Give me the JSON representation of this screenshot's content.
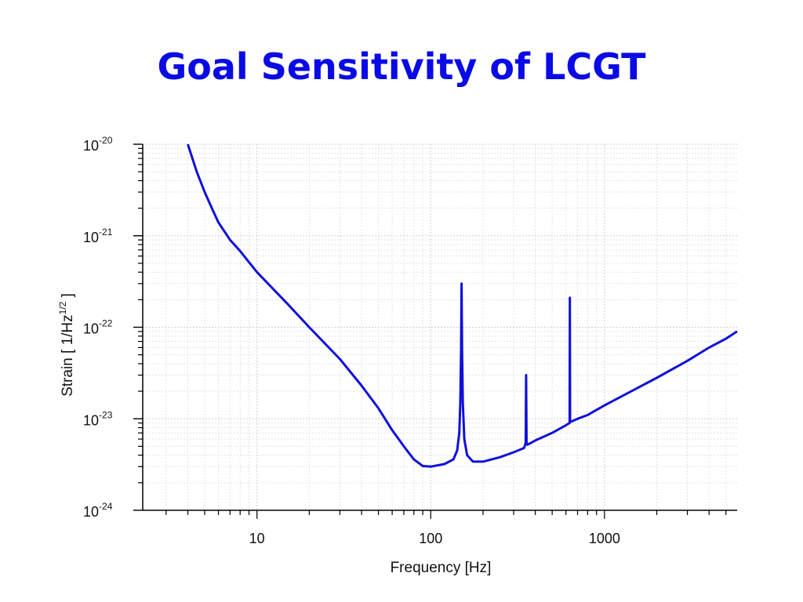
{
  "slide": {
    "title": "Goal Sensitivity of LCGT"
  },
  "chart_data": {
    "type": "line",
    "title": "Goal Sensitivity of LCGT",
    "xlabel": "Frequency [Hz]",
    "ylabel": "Strain [ 1/Hz^1/2 ]",
    "x_scale": "log",
    "y_scale": "log",
    "xlim": [
      2.2,
      5800
    ],
    "ylim": [
      1e-24,
      1e-20
    ],
    "grid": true,
    "x_ticks": [
      {
        "value": 10,
        "label": "10"
      },
      {
        "value": 100,
        "label": "100"
      },
      {
        "value": 1000,
        "label": "1000"
      }
    ],
    "y_ticks": [
      {
        "value": 1e-20,
        "base": "10",
        "exp": "-20"
      },
      {
        "value": 1e-21,
        "base": "10",
        "exp": "-21"
      },
      {
        "value": 1e-22,
        "base": "10",
        "exp": "-22"
      },
      {
        "value": 1e-23,
        "base": "10",
        "exp": "-23"
      },
      {
        "value": 1e-24,
        "base": "10",
        "exp": "-24"
      }
    ],
    "color": "#1010d8",
    "series": [
      {
        "values": [
          [
            4.0,
            1e-20
          ],
          [
            4.5,
            5e-21
          ],
          [
            5.0,
            3e-21
          ],
          [
            5.5,
            2e-21
          ],
          [
            6.0,
            1.4e-21
          ],
          [
            7.0,
            9e-22
          ],
          [
            8.0,
            6.8e-22
          ],
          [
            10.0,
            4e-22
          ],
          [
            15.0,
            1.8e-22
          ],
          [
            20.0,
            1e-22
          ],
          [
            30.0,
            4.5e-23
          ],
          [
            40.0,
            2.3e-23
          ],
          [
            50.0,
            1.3e-23
          ],
          [
            60.0,
            7.5e-24
          ],
          [
            70.0,
            5e-24
          ],
          [
            80.0,
            3.6e-24
          ],
          [
            90.0,
            3.05e-24
          ],
          [
            100.0,
            3e-24
          ],
          [
            120.0,
            3.2e-24
          ],
          [
            135.0,
            3.6e-24
          ],
          [
            142.0,
            4.5e-24
          ],
          [
            146.0,
            7e-24
          ],
          [
            148.0,
            1.5e-23
          ],
          [
            149.5,
            6e-23
          ],
          [
            150.5,
            3e-22
          ],
          [
            151.5,
            6e-23
          ],
          [
            153.0,
            1.5e-23
          ],
          [
            156.0,
            6e-24
          ],
          [
            162.0,
            4e-24
          ],
          [
            175.0,
            3.4e-24
          ],
          [
            200.0,
            3.4e-24
          ],
          [
            250.0,
            3.8e-24
          ],
          [
            300.0,
            4.3e-24
          ],
          [
            345.0,
            4.8e-24
          ],
          [
            352.0,
            5.5e-24
          ],
          [
            354.0,
            3e-23
          ],
          [
            356.0,
            5.5e-24
          ],
          [
            360.0,
            5.2e-24
          ],
          [
            400.0,
            5.8e-24
          ],
          [
            500.0,
            7e-24
          ],
          [
            600.0,
            8.5e-24
          ],
          [
            630.0,
            9e-24
          ],
          [
            632.0,
            2.1e-22
          ],
          [
            634.0,
            9.2e-24
          ],
          [
            700.0,
            1e-23
          ],
          [
            800.0,
            1.1e-23
          ],
          [
            1000.0,
            1.4e-23
          ],
          [
            1500.0,
            2.1e-23
          ],
          [
            2000.0,
            2.8e-23
          ],
          [
            3000.0,
            4.3e-23
          ],
          [
            4000.0,
            6e-23
          ],
          [
            5000.0,
            7.5e-23
          ],
          [
            5800.0,
            9e-23
          ]
        ]
      }
    ]
  }
}
